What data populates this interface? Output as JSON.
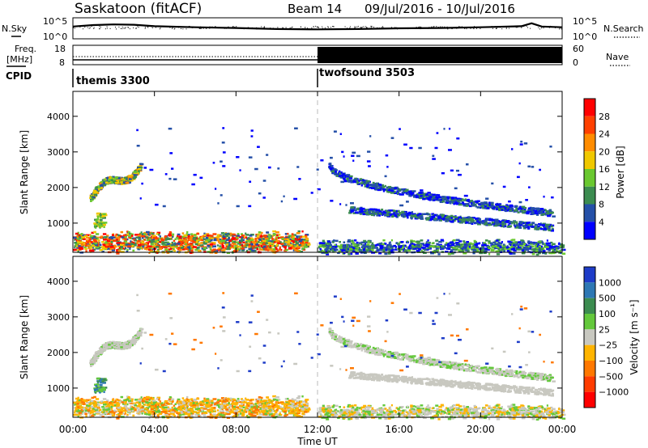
{
  "header": {
    "station": "Saskatoon (fitACF)",
    "beam": "Beam 14",
    "daterange": "09/Jul/2016 - 10/Jul/2016"
  },
  "noise_panel": {
    "left_label": "N.Sky",
    "right_label": "N.Search",
    "left_ticks": [
      "10^5",
      "10^0"
    ],
    "right_ticks": [
      "10^5",
      "10^0"
    ]
  },
  "freq_panel": {
    "left_label_1": "Freq.",
    "left_label_2": "[MHz]",
    "right_label": "Nave",
    "left_ticks": [
      "18",
      "8"
    ],
    "right_ticks": [
      "60",
      "0"
    ]
  },
  "cpid": {
    "label": "CPID",
    "modes": [
      {
        "name": "themis 3300",
        "start_hour": 0
      },
      {
        "name": "twofsound 3503",
        "start_hour": 12
      }
    ]
  },
  "x_axis": {
    "label": "Time UT",
    "ticks": [
      "00:00",
      "04:00",
      "08:00",
      "12:00",
      "16:00",
      "20:00",
      "00:00"
    ]
  },
  "power_panel": {
    "ylabel": "Slant Range [km]",
    "yticks": [
      "1000",
      "2000",
      "3000",
      "4000"
    ],
    "colorbar_label": "Power [dB]",
    "colorbar_ticks": [
      "4",
      "8",
      "12",
      "16",
      "20",
      "24",
      "28"
    ],
    "colors": [
      "#0000ff",
      "#2550a8",
      "#3c8c50",
      "#6ac830",
      "#f0c800",
      "#ff8c00",
      "#ff4000",
      "#ff0000"
    ]
  },
  "velocity_panel": {
    "ylabel": "Slant Range [km]",
    "yticks": [
      "1000",
      "2000",
      "3000",
      "4000"
    ],
    "colorbar_label": "Velocity [m s⁻¹]",
    "colorbar_ticks": [
      "1000",
      "500",
      "100",
      "25",
      "−25",
      "−100",
      "−500",
      "−1000"
    ],
    "colors": [
      "#1e3cc8",
      "#2e78b4",
      "#3c8c50",
      "#64c83c",
      "#c8c8c0",
      "#ffb400",
      "#ff7800",
      "#ff3c00",
      "#ff0000"
    ]
  },
  "chart_data": {
    "type": "heatmap",
    "title": "Saskatoon (fitACF)",
    "xlabel": "Time UT",
    "ylabel": "Slant Range [km]",
    "xlim": [
      0,
      24
    ],
    "ylim": [
      180,
      4700
    ],
    "scatter_regions": [
      {
        "name": "early-far",
        "t": [
          0.8,
          3.3
        ],
        "r": [
          1500,
          2800
        ],
        "power_db": 14
      },
      {
        "name": "early-patch",
        "t": [
          1.0,
          1.5
        ],
        "r": [
          900,
          1300
        ],
        "power_db": 18
      },
      {
        "name": "near-range-day",
        "t": [
          0.0,
          11.5
        ],
        "r": [
          200,
          800
        ],
        "power_db": 18
      },
      {
        "name": "near-range-night",
        "t": [
          12.0,
          24.0
        ],
        "r": [
          200,
          500
        ],
        "power_db": 10
      },
      {
        "name": "arc-upper",
        "t": [
          12.5,
          23.5
        ],
        "r": [
          1100,
          2700
        ],
        "power_db": 8
      },
      {
        "name": "arc-lower",
        "t": [
          13.5,
          23.5
        ],
        "r": [
          800,
          1400
        ],
        "power_db": 8
      }
    ],
    "noise": {
      "sky": [
        {
          "x": 0,
          "y": 3.0
        },
        {
          "x": 1,
          "y": 3.4
        },
        {
          "x": 2,
          "y": 3.6
        },
        {
          "x": 3,
          "y": 3.5
        },
        {
          "x": 4,
          "y": 3.1
        },
        {
          "x": 6,
          "y": 2.8
        },
        {
          "x": 8,
          "y": 2.6
        },
        {
          "x": 10,
          "y": 2.3
        },
        {
          "x": 12,
          "y": 2.2
        },
        {
          "x": 14,
          "y": 2.3
        },
        {
          "x": 16,
          "y": 2.5
        },
        {
          "x": 18,
          "y": 2.6
        },
        {
          "x": 20,
          "y": 2.8
        },
        {
          "x": 22,
          "y": 3.1
        },
        {
          "x": 22.5,
          "y": 3.9
        },
        {
          "x": 23,
          "y": 3.0
        },
        {
          "x": 24,
          "y": 2.8
        }
      ]
    },
    "frequency_mhz": [
      {
        "x": 0,
        "y": 10.5
      },
      {
        "x": 12,
        "y": 10.5
      },
      {
        "x": 24,
        "y": 10.5
      }
    ],
    "nave": [
      {
        "x": 0,
        "y": 25
      },
      {
        "x": 12,
        "y": 25
      },
      {
        "x": 12,
        "y": 55
      },
      {
        "x": 24,
        "y": 55
      }
    ]
  }
}
